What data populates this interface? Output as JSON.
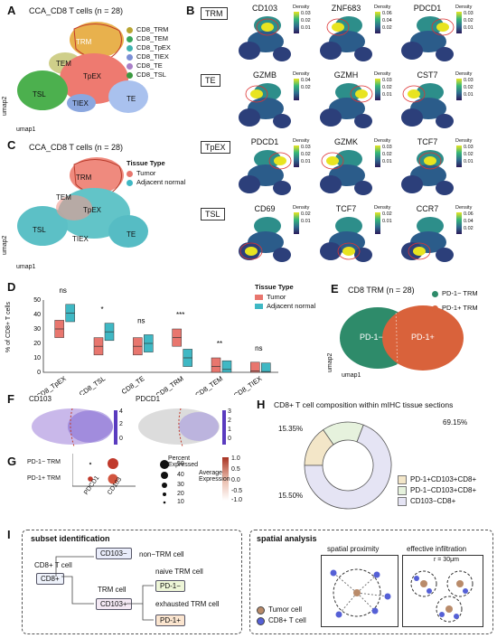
{
  "panels": {
    "A": {
      "letter": "A",
      "title": "CCA_CD8 T cells (n = 28)",
      "clusters": [
        {
          "text": "TRM",
          "color": "#d9a330"
        },
        {
          "text": "TEM",
          "color": "#8a8a4a"
        },
        {
          "text": "TpEX",
          "color": "#e8766e"
        },
        {
          "text": "TSL",
          "color": "#3fb34f"
        },
        {
          "text": "TIEX",
          "color": "#8bb0e0"
        },
        {
          "text": "TE",
          "color": "#7aa3dd"
        }
      ],
      "legend": [
        {
          "text": "CD8_TRM",
          "color": "#b8a532"
        },
        {
          "text": "CD8_TEM",
          "color": "#3aa65a"
        },
        {
          "text": "CD8_TpEX",
          "color": "#3fb3b0"
        },
        {
          "text": "CD8_TIEX",
          "color": "#7b8fd6"
        },
        {
          "text": "CD8_TE",
          "color": "#a97fc7"
        },
        {
          "text": "CD8_TSL",
          "color": "#3c9a40"
        }
      ],
      "axis_y": "umap2",
      "axis_x": "umap1"
    },
    "B": {
      "letter": "B",
      "rows": [
        {
          "label": "TRM",
          "genes": [
            {
              "name": "CD103",
              "ticks": [
                "0.03",
                "0.02",
                "0.01"
              ]
            },
            {
              "name": "ZNF683",
              "ticks": [
                "0.06",
                "0.04",
                "0.02"
              ]
            },
            {
              "name": "PDCD1",
              "ticks": [
                "0.03",
                "0.02",
                "0.01"
              ]
            }
          ]
        },
        {
          "label": "TE",
          "genes": [
            {
              "name": "GZMB",
              "ticks": [
                "0.04",
                "0.02",
                ""
              ]
            },
            {
              "name": "GZMH",
              "ticks": [
                "0.03",
                "0.02",
                "0.01"
              ]
            },
            {
              "name": "CST7",
              "ticks": [
                "0.03",
                "0.02",
                "0.01"
              ]
            }
          ]
        },
        {
          "label": "TpEX",
          "genes": [
            {
              "name": "PDCD1",
              "ticks": [
                "0.03",
                "0.02",
                "0.01"
              ]
            },
            {
              "name": "GZMK",
              "ticks": [
                "0.03",
                "0.02",
                "0.01"
              ]
            },
            {
              "name": "TCF7",
              "ticks": [
                "0.03",
                "0.02",
                "0.01"
              ]
            }
          ]
        },
        {
          "label": "TSL",
          "genes": [
            {
              "name": "CD69",
              "ticks": [
                "0.02",
                "0.01",
                ""
              ]
            },
            {
              "name": "TCF7",
              "ticks": [
                "0.02",
                "0.01",
                ""
              ]
            },
            {
              "name": "CCR7",
              "ticks": [
                "0.06",
                "0.04",
                "0.02"
              ]
            }
          ]
        }
      ],
      "density_label": "Density"
    },
    "C": {
      "letter": "C",
      "title": "CCA_CD8 T cells (n = 28)",
      "legend_title": "Tissue Type",
      "legend": [
        {
          "text": "Tumor",
          "color": "#e8766e"
        },
        {
          "text": "Adjacent normal",
          "color": "#3fb8c4"
        }
      ],
      "clusters": [
        "TRM",
        "TEM",
        "TpEX",
        "TSL",
        "TIEX",
        "TE"
      ],
      "axis_y": "umap2",
      "axis_x": "umap1"
    },
    "D": {
      "letter": "D",
      "ylabel": "% of CD8+ T cells",
      "legend_title": "Tissue Type",
      "legend": [
        {
          "text": "Tumor",
          "color": "#e8766e"
        },
        {
          "text": "Adjacent normal",
          "color": "#3fb8c4"
        }
      ],
      "categories": [
        "CD8_TpEX",
        "CD8_TSL",
        "CD8_TE",
        "CD8_TRM",
        "CD8_TEM",
        "CD8_TIEX"
      ],
      "significance": [
        "ns",
        "*",
        "ns",
        "***",
        "**",
        "ns"
      ],
      "yticks": [
        "0",
        "10",
        "20",
        "30",
        "40",
        "50"
      ]
    },
    "E": {
      "letter": "E",
      "title": "CD8 TRM (n = 28)",
      "legend": [
        {
          "text": "PD-1− TRM",
          "color": "#2e8b6a"
        },
        {
          "text": "PD-1+ TRM",
          "color": "#d9623b"
        }
      ],
      "left_label": "PD-1−",
      "right_label": "PD-1+",
      "axis_y": "umap2",
      "axis_x": "umap1"
    },
    "F": {
      "letter": "F",
      "gene1": "CD103",
      "gene2": "PDCD1",
      "ticks1": [
        "4",
        "2",
        "0"
      ],
      "ticks2": [
        "3",
        "2",
        "1",
        "0"
      ]
    },
    "G": {
      "letter": "G",
      "rows": [
        "PD-1− TRM",
        "PD-1+ TRM"
      ],
      "cols": [
        "PDCD1",
        "CD103"
      ],
      "pct_title": "Percent Expressed",
      "pct_values": [
        "50",
        "40",
        "30",
        "20",
        "10"
      ],
      "avg_title": "Average Expression",
      "avg_ticks": [
        "1.0",
        "0.5",
        "0.0",
        "-0.5",
        "-1.0"
      ]
    },
    "H": {
      "letter": "H",
      "title": "CD8+ T cell composition within mIHC tissue sections",
      "slices": [
        {
          "label": "PD-1+CD103+CD8+",
          "pct_text": "15.35%",
          "value": 15.35,
          "color": "#f3e6c8"
        },
        {
          "label": "PD-1−CD103+CD8+",
          "pct_text": "15.50%",
          "value": 15.5,
          "color": "#e6f2dd"
        },
        {
          "label": "CD103−CD8+",
          "pct_text": "69.15%",
          "value": 69.15,
          "color": "#e5e4f4"
        }
      ]
    },
    "I": {
      "letter": "I",
      "left_title": "subset identification",
      "cd8_label": "CD8+ T cell",
      "cd8_box": "CD8+",
      "cd103neg": "CD103−",
      "non_trm": "non−TRM cell",
      "trm_cell": "TRM cell",
      "cd103pos": "CD103+",
      "naive": "naive TRM cell",
      "pd1neg": "PD-1−",
      "exhausted": "exhausted TRM cell",
      "pd1pos": "PD-1+",
      "right_title": "spatial analysis",
      "prox": "spatial proximity",
      "infil": "effective infiltration",
      "radius": "r = 30μm",
      "legend": [
        {
          "text": "Tumor cell",
          "color": "#b98b6a"
        },
        {
          "text": "CD8+ T cell",
          "color": "#5560d6"
        }
      ]
    }
  }
}
